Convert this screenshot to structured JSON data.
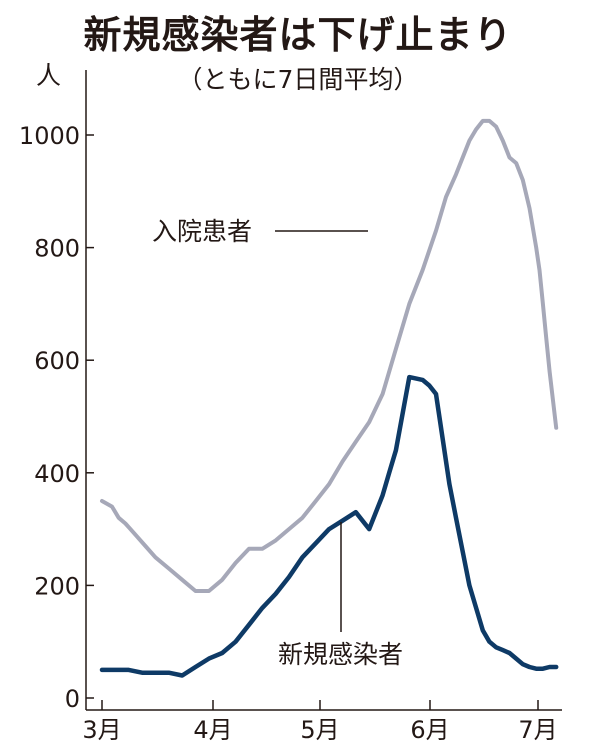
{
  "chart_data": {
    "type": "line",
    "title": "新規感染者は下げ止まり",
    "subtitle": "（ともに7日間平均）",
    "y_unit": "人",
    "ylim": [
      0,
      1080
    ],
    "y_ticks": [
      0,
      200,
      400,
      600,
      800,
      1000
    ],
    "x_ticks": [
      "3月",
      "4月",
      "5月",
      "6月",
      "7月"
    ],
    "grid": false,
    "series": [
      {
        "name": "入院患者",
        "color": "#a6a8b8",
        "x": [
          0,
          3,
          5,
          7,
          10,
          13,
          16,
          20,
          24,
          28,
          32,
          36,
          40,
          44,
          48,
          52,
          56,
          60,
          64,
          68,
          72,
          76,
          80,
          84,
          88,
          92,
          96,
          100,
          103,
          106,
          108,
          110,
          112,
          114,
          116,
          118,
          120,
          122,
          124,
          126,
          128,
          130,
          131,
          132,
          133,
          134,
          136
        ],
        "values": [
          350,
          340,
          320,
          310,
          290,
          270,
          250,
          230,
          210,
          190,
          190,
          210,
          240,
          265,
          265,
          280,
          300,
          320,
          350,
          380,
          420,
          455,
          490,
          540,
          620,
          700,
          760,
          830,
          890,
          930,
          960,
          990,
          1010,
          1025,
          1025,
          1015,
          990,
          960,
          950,
          920,
          870,
          800,
          760,
          700,
          640,
          580,
          480
        ]
      },
      {
        "name": "新規感染者",
        "color": "#0e3a66",
        "x": [
          0,
          4,
          8,
          12,
          16,
          20,
          24,
          28,
          32,
          36,
          40,
          44,
          48,
          52,
          56,
          60,
          64,
          68,
          72,
          76,
          80,
          84,
          86,
          88,
          92,
          96,
          98,
          100,
          102,
          104,
          106,
          108,
          110,
          112,
          114,
          116,
          118,
          120,
          122,
          124,
          126,
          128,
          130,
          132,
          134,
          136
        ],
        "values": [
          50,
          50,
          50,
          45,
          45,
          45,
          40,
          55,
          70,
          80,
          100,
          130,
          160,
          185,
          215,
          250,
          275,
          300,
          315,
          330,
          300,
          360,
          400,
          440,
          570,
          565,
          555,
          540,
          460,
          380,
          320,
          260,
          200,
          160,
          120,
          100,
          90,
          85,
          80,
          70,
          60,
          55,
          52,
          52,
          55,
          55
        ]
      }
    ],
    "annotations": {
      "inpatients_label": "入院患者",
      "new_cases_label": "新規感染者"
    }
  }
}
